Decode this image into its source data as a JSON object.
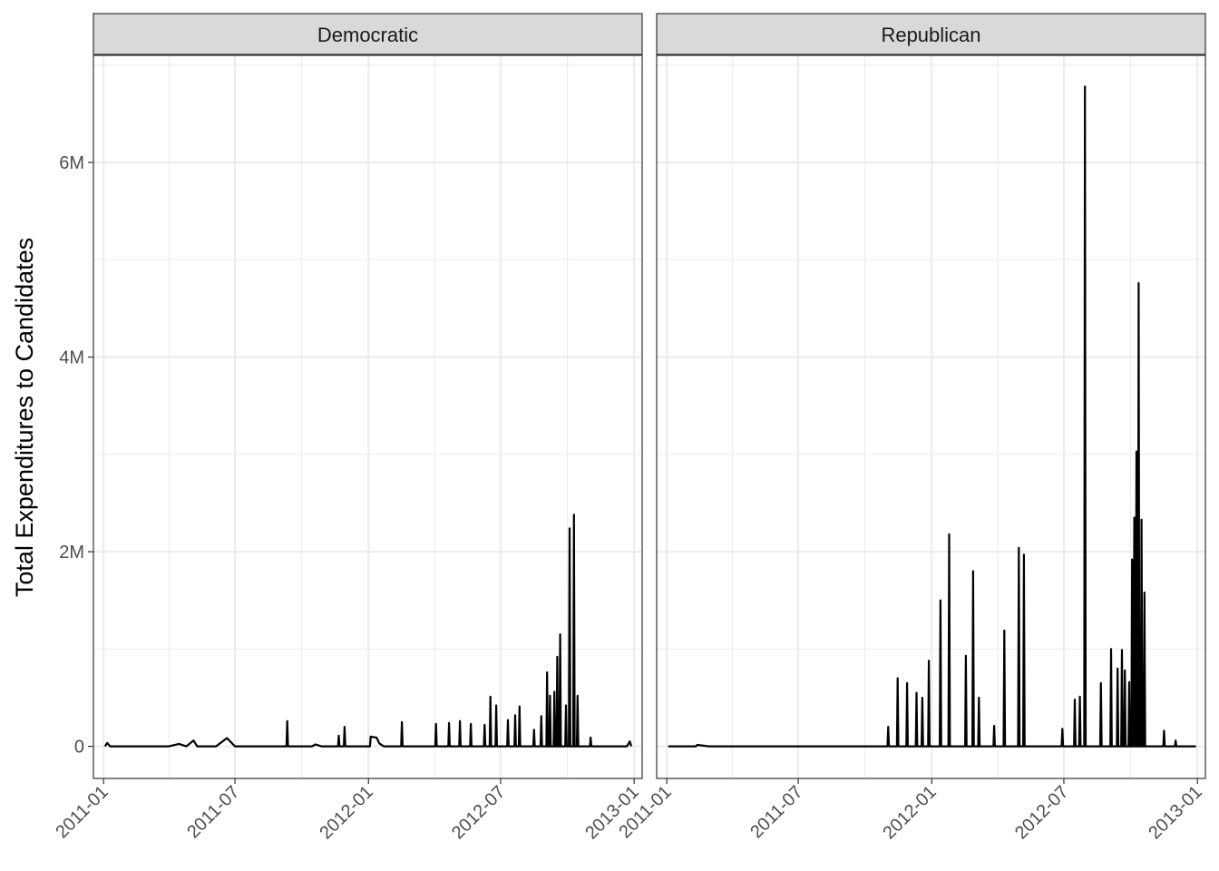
{
  "chart_data": {
    "type": "line",
    "ylabel": "Total Expenditures to Candidates",
    "xlabel": "",
    "x_axis_type": "date",
    "xlim": [
      "2010-12-18",
      "2013-01-12"
    ],
    "ylim": [
      -330000,
      7100000
    ],
    "x_ticks": [
      "2011-01",
      "2011-07",
      "2012-01",
      "2012-07",
      "2013-01"
    ],
    "y_ticks": [
      {
        "value": 0,
        "label": "0"
      },
      {
        "value": 2000000,
        "label": "2M"
      },
      {
        "value": 4000000,
        "label": "4M"
      },
      {
        "value": 6000000,
        "label": "6M"
      }
    ],
    "grid": true,
    "legend": "none",
    "colors": {
      "line": "#000000",
      "strip_fill": "#d9d9d9",
      "grid": "#ebebeb",
      "panel_border": "#333333"
    },
    "panels": [
      {
        "name": "Democratic",
        "points": [
          [
            "2011-01-03",
            0
          ],
          [
            "2011-01-06",
            35000
          ],
          [
            "2011-01-10",
            0
          ],
          [
            "2011-04-01",
            0
          ],
          [
            "2011-04-15",
            25000
          ],
          [
            "2011-04-25",
            0
          ],
          [
            "2011-05-05",
            60000
          ],
          [
            "2011-05-10",
            0
          ],
          [
            "2011-06-05",
            0
          ],
          [
            "2011-06-20",
            85000
          ],
          [
            "2011-07-01",
            0
          ],
          [
            "2011-09-10",
            0
          ],
          [
            "2011-09-11",
            260000
          ],
          [
            "2011-09-12",
            0
          ],
          [
            "2011-10-15",
            0
          ],
          [
            "2011-10-20",
            20000
          ],
          [
            "2011-10-28",
            0
          ],
          [
            "2011-11-20",
            0
          ],
          [
            "2011-11-21",
            110000
          ],
          [
            "2011-11-22",
            0
          ],
          [
            "2011-11-28",
            0
          ],
          [
            "2011-11-29",
            200000
          ],
          [
            "2011-11-30",
            0
          ],
          [
            "2012-01-03",
            0
          ],
          [
            "2012-01-04",
            100000
          ],
          [
            "2012-01-12",
            90000
          ],
          [
            "2012-01-16",
            30000
          ],
          [
            "2012-01-22",
            0
          ],
          [
            "2012-02-15",
            0
          ],
          [
            "2012-02-16",
            250000
          ],
          [
            "2012-02-17",
            0
          ],
          [
            "2012-04-02",
            0
          ],
          [
            "2012-04-03",
            230000
          ],
          [
            "2012-04-04",
            0
          ],
          [
            "2012-04-20",
            0
          ],
          [
            "2012-04-21",
            240000
          ],
          [
            "2012-04-22",
            0
          ],
          [
            "2012-05-05",
            0
          ],
          [
            "2012-05-06",
            260000
          ],
          [
            "2012-05-07",
            0
          ],
          [
            "2012-05-20",
            0
          ],
          [
            "2012-05-21",
            230000
          ],
          [
            "2012-05-22",
            0
          ],
          [
            "2012-06-08",
            0
          ],
          [
            "2012-06-09",
            220000
          ],
          [
            "2012-06-10",
            0
          ],
          [
            "2012-06-16",
            0
          ],
          [
            "2012-06-17",
            510000
          ],
          [
            "2012-06-18",
            0
          ],
          [
            "2012-06-24",
            0
          ],
          [
            "2012-06-25",
            420000
          ],
          [
            "2012-06-26",
            0
          ],
          [
            "2012-07-10",
            0
          ],
          [
            "2012-07-11",
            270000
          ],
          [
            "2012-07-12",
            0
          ],
          [
            "2012-07-20",
            0
          ],
          [
            "2012-07-21",
            320000
          ],
          [
            "2012-07-22",
            0
          ],
          [
            "2012-07-26",
            0
          ],
          [
            "2012-07-27",
            410000
          ],
          [
            "2012-07-28",
            0
          ],
          [
            "2012-08-15",
            0
          ],
          [
            "2012-08-16",
            170000
          ],
          [
            "2012-08-17",
            0
          ],
          [
            "2012-08-25",
            0
          ],
          [
            "2012-08-26",
            310000
          ],
          [
            "2012-08-27",
            0
          ],
          [
            "2012-09-02",
            0
          ],
          [
            "2012-09-03",
            760000
          ],
          [
            "2012-09-04",
            0
          ],
          [
            "2012-09-06",
            0
          ],
          [
            "2012-09-07",
            520000
          ],
          [
            "2012-09-08",
            0
          ],
          [
            "2012-09-12",
            0
          ],
          [
            "2012-09-13",
            560000
          ],
          [
            "2012-09-14",
            0
          ],
          [
            "2012-09-16",
            0
          ],
          [
            "2012-09-17",
            920000
          ],
          [
            "2012-09-18",
            0
          ],
          [
            "2012-09-20",
            0
          ],
          [
            "2012-09-21",
            1150000
          ],
          [
            "2012-09-22",
            0
          ],
          [
            "2012-09-28",
            0
          ],
          [
            "2012-09-29",
            420000
          ],
          [
            "2012-09-30",
            0
          ],
          [
            "2012-10-03",
            0
          ],
          [
            "2012-10-04",
            2240000
          ],
          [
            "2012-10-05",
            0
          ],
          [
            "2012-10-09",
            0
          ],
          [
            "2012-10-10",
            2380000
          ],
          [
            "2012-10-11",
            0
          ],
          [
            "2012-10-14",
            0
          ],
          [
            "2012-10-15",
            520000
          ],
          [
            "2012-10-16",
            0
          ],
          [
            "2012-11-01",
            0
          ],
          [
            "2012-11-02",
            90000
          ],
          [
            "2012-11-03",
            0
          ],
          [
            "2012-12-22",
            0
          ],
          [
            "2012-12-26",
            50000
          ],
          [
            "2012-12-28",
            0
          ]
        ]
      },
      {
        "name": "Republican",
        "points": [
          [
            "2011-01-03",
            0
          ],
          [
            "2011-02-10",
            0
          ],
          [
            "2011-02-12",
            15000
          ],
          [
            "2011-02-28",
            0
          ],
          [
            "2011-11-01",
            0
          ],
          [
            "2011-11-02",
            200000
          ],
          [
            "2011-11-03",
            0
          ],
          [
            "2011-11-14",
            0
          ],
          [
            "2011-11-15",
            700000
          ],
          [
            "2011-11-16",
            0
          ],
          [
            "2011-11-27",
            0
          ],
          [
            "2011-11-28",
            650000
          ],
          [
            "2011-11-29",
            0
          ],
          [
            "2011-12-10",
            0
          ],
          [
            "2011-12-11",
            550000
          ],
          [
            "2011-12-12",
            0
          ],
          [
            "2011-12-18",
            0
          ],
          [
            "2011-12-19",
            500000
          ],
          [
            "2011-12-20",
            0
          ],
          [
            "2011-12-27",
            0
          ],
          [
            "2011-12-28",
            880000
          ],
          [
            "2011-12-29",
            0
          ],
          [
            "2012-01-12",
            0
          ],
          [
            "2012-01-13",
            1500000
          ],
          [
            "2012-01-14",
            0
          ],
          [
            "2012-01-24",
            0
          ],
          [
            "2012-01-25",
            2180000
          ],
          [
            "2012-01-26",
            0
          ],
          [
            "2012-02-16",
            0
          ],
          [
            "2012-02-17",
            930000
          ],
          [
            "2012-02-18",
            0
          ],
          [
            "2012-02-26",
            0
          ],
          [
            "2012-02-27",
            1800000
          ],
          [
            "2012-02-28",
            0
          ],
          [
            "2012-03-05",
            0
          ],
          [
            "2012-03-06",
            500000
          ],
          [
            "2012-03-07",
            0
          ],
          [
            "2012-03-26",
            0
          ],
          [
            "2012-03-27",
            210000
          ],
          [
            "2012-03-28",
            0
          ],
          [
            "2012-04-09",
            0
          ],
          [
            "2012-04-10",
            1190000
          ],
          [
            "2012-04-11",
            0
          ],
          [
            "2012-04-29",
            0
          ],
          [
            "2012-04-30",
            2040000
          ],
          [
            "2012-05-01",
            0
          ],
          [
            "2012-05-06",
            0
          ],
          [
            "2012-05-07",
            1970000
          ],
          [
            "2012-05-08",
            0
          ],
          [
            "2012-06-28",
            0
          ],
          [
            "2012-06-29",
            180000
          ],
          [
            "2012-06-30",
            0
          ],
          [
            "2012-07-15",
            0
          ],
          [
            "2012-07-16",
            480000
          ],
          [
            "2012-07-17",
            0
          ],
          [
            "2012-07-22",
            0
          ],
          [
            "2012-07-23",
            510000
          ],
          [
            "2012-07-24",
            0
          ],
          [
            "2012-07-29",
            0
          ],
          [
            "2012-07-30",
            6780000
          ],
          [
            "2012-07-31",
            0
          ],
          [
            "2012-08-20",
            0
          ],
          [
            "2012-08-21",
            650000
          ],
          [
            "2012-08-22",
            0
          ],
          [
            "2012-09-03",
            0
          ],
          [
            "2012-09-04",
            1000000
          ],
          [
            "2012-09-05",
            0
          ],
          [
            "2012-09-12",
            0
          ],
          [
            "2012-09-13",
            800000
          ],
          [
            "2012-09-14",
            0
          ],
          [
            "2012-09-18",
            0
          ],
          [
            "2012-09-19",
            990000
          ],
          [
            "2012-09-20",
            0
          ],
          [
            "2012-09-22",
            0
          ],
          [
            "2012-09-23",
            780000
          ],
          [
            "2012-09-24",
            0
          ],
          [
            "2012-09-28",
            0
          ],
          [
            "2012-09-29",
            660000
          ],
          [
            "2012-09-30",
            0
          ],
          [
            "2012-10-02",
            0
          ],
          [
            "2012-10-03",
            1920000
          ],
          [
            "2012-10-04",
            0
          ],
          [
            "2012-10-05",
            0
          ],
          [
            "2012-10-06",
            2350000
          ],
          [
            "2012-10-07",
            0
          ],
          [
            "2012-10-08",
            0
          ],
          [
            "2012-10-09",
            3030000
          ],
          [
            "2012-10-10",
            0
          ],
          [
            "2012-10-11",
            0
          ],
          [
            "2012-10-12",
            4760000
          ],
          [
            "2012-10-13",
            0
          ],
          [
            "2012-10-15",
            0
          ],
          [
            "2012-10-16",
            2330000
          ],
          [
            "2012-10-17",
            0
          ],
          [
            "2012-10-19",
            0
          ],
          [
            "2012-10-20",
            1580000
          ],
          [
            "2012-10-21",
            0
          ],
          [
            "2012-11-15",
            0
          ],
          [
            "2012-11-16",
            160000
          ],
          [
            "2012-11-17",
            0
          ],
          [
            "2012-12-01",
            0
          ],
          [
            "2012-12-02",
            60000
          ],
          [
            "2012-12-03",
            0
          ],
          [
            "2012-12-30",
            0
          ]
        ]
      }
    ]
  }
}
